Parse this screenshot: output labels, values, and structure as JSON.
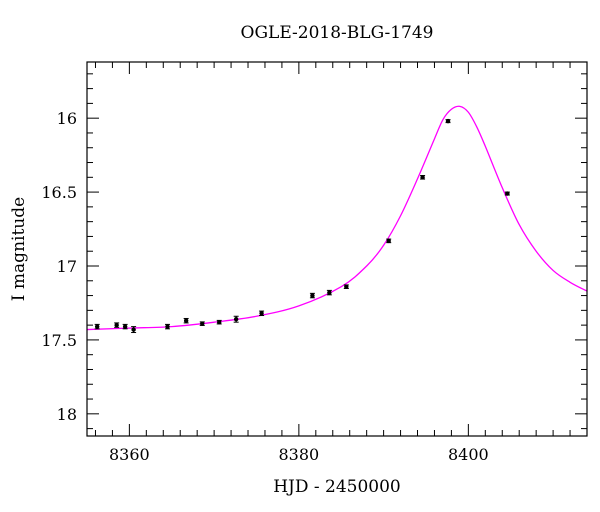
{
  "chart_data": {
    "type": "scatter",
    "title": "OGLE-2018-BLG-1749",
    "xlabel": "HJD - 2450000",
    "ylabel": "I magnitude",
    "xlim": [
      8355,
      8414
    ],
    "ylim": [
      18.15,
      15.62
    ],
    "y_inverted": true,
    "grid": false,
    "x_ticks": {
      "major": [
        8360,
        8380,
        8400
      ],
      "labels": [
        "8360",
        "8380",
        "8400"
      ],
      "minor_step": 2
    },
    "y_ticks": {
      "major": [
        16,
        16.5,
        17,
        17.5,
        18
      ],
      "labels": [
        "16",
        "16.5",
        "17",
        "17.5",
        "18"
      ],
      "minor_step": 0.1
    },
    "colors": {
      "points": "#000000",
      "model": "#ff00ff",
      "axes": "#000000"
    },
    "series": [
      {
        "kind": "points",
        "x": [
          8356.2,
          8358.5,
          8359.5,
          8360.5,
          8364.5,
          8366.7,
          8368.6,
          8370.6,
          8372.6,
          8375.6,
          8381.6,
          8383.6,
          8385.6,
          8390.6,
          8394.6,
          8397.6,
          8404.6
        ],
        "y": [
          17.41,
          17.4,
          17.41,
          17.43,
          17.41,
          17.37,
          17.39,
          17.38,
          17.36,
          17.32,
          17.2,
          17.18,
          17.14,
          16.83,
          16.4,
          16.02,
          16.51
        ],
        "err": [
          0.015,
          0.015,
          0.015,
          0.02,
          0.015,
          0.015,
          0.012,
          0.012,
          0.02,
          0.015,
          0.015,
          0.015,
          0.012,
          0.012,
          0.012,
          0.01,
          0.01
        ]
      },
      {
        "kind": "model",
        "x": [
          8355,
          8360,
          8365,
          8370,
          8375,
          8380,
          8385,
          8388,
          8390,
          8392,
          8394,
          8396,
          8397,
          8398,
          8399,
          8400,
          8401,
          8402,
          8404,
          8406,
          8408,
          8410,
          8412,
          8414
        ],
        "y": [
          17.43,
          17.42,
          17.41,
          17.38,
          17.34,
          17.27,
          17.14,
          17.0,
          16.86,
          16.66,
          16.41,
          16.14,
          16.01,
          15.94,
          15.92,
          15.96,
          16.06,
          16.19,
          16.47,
          16.72,
          16.9,
          17.03,
          17.11,
          17.17
        ]
      }
    ]
  }
}
